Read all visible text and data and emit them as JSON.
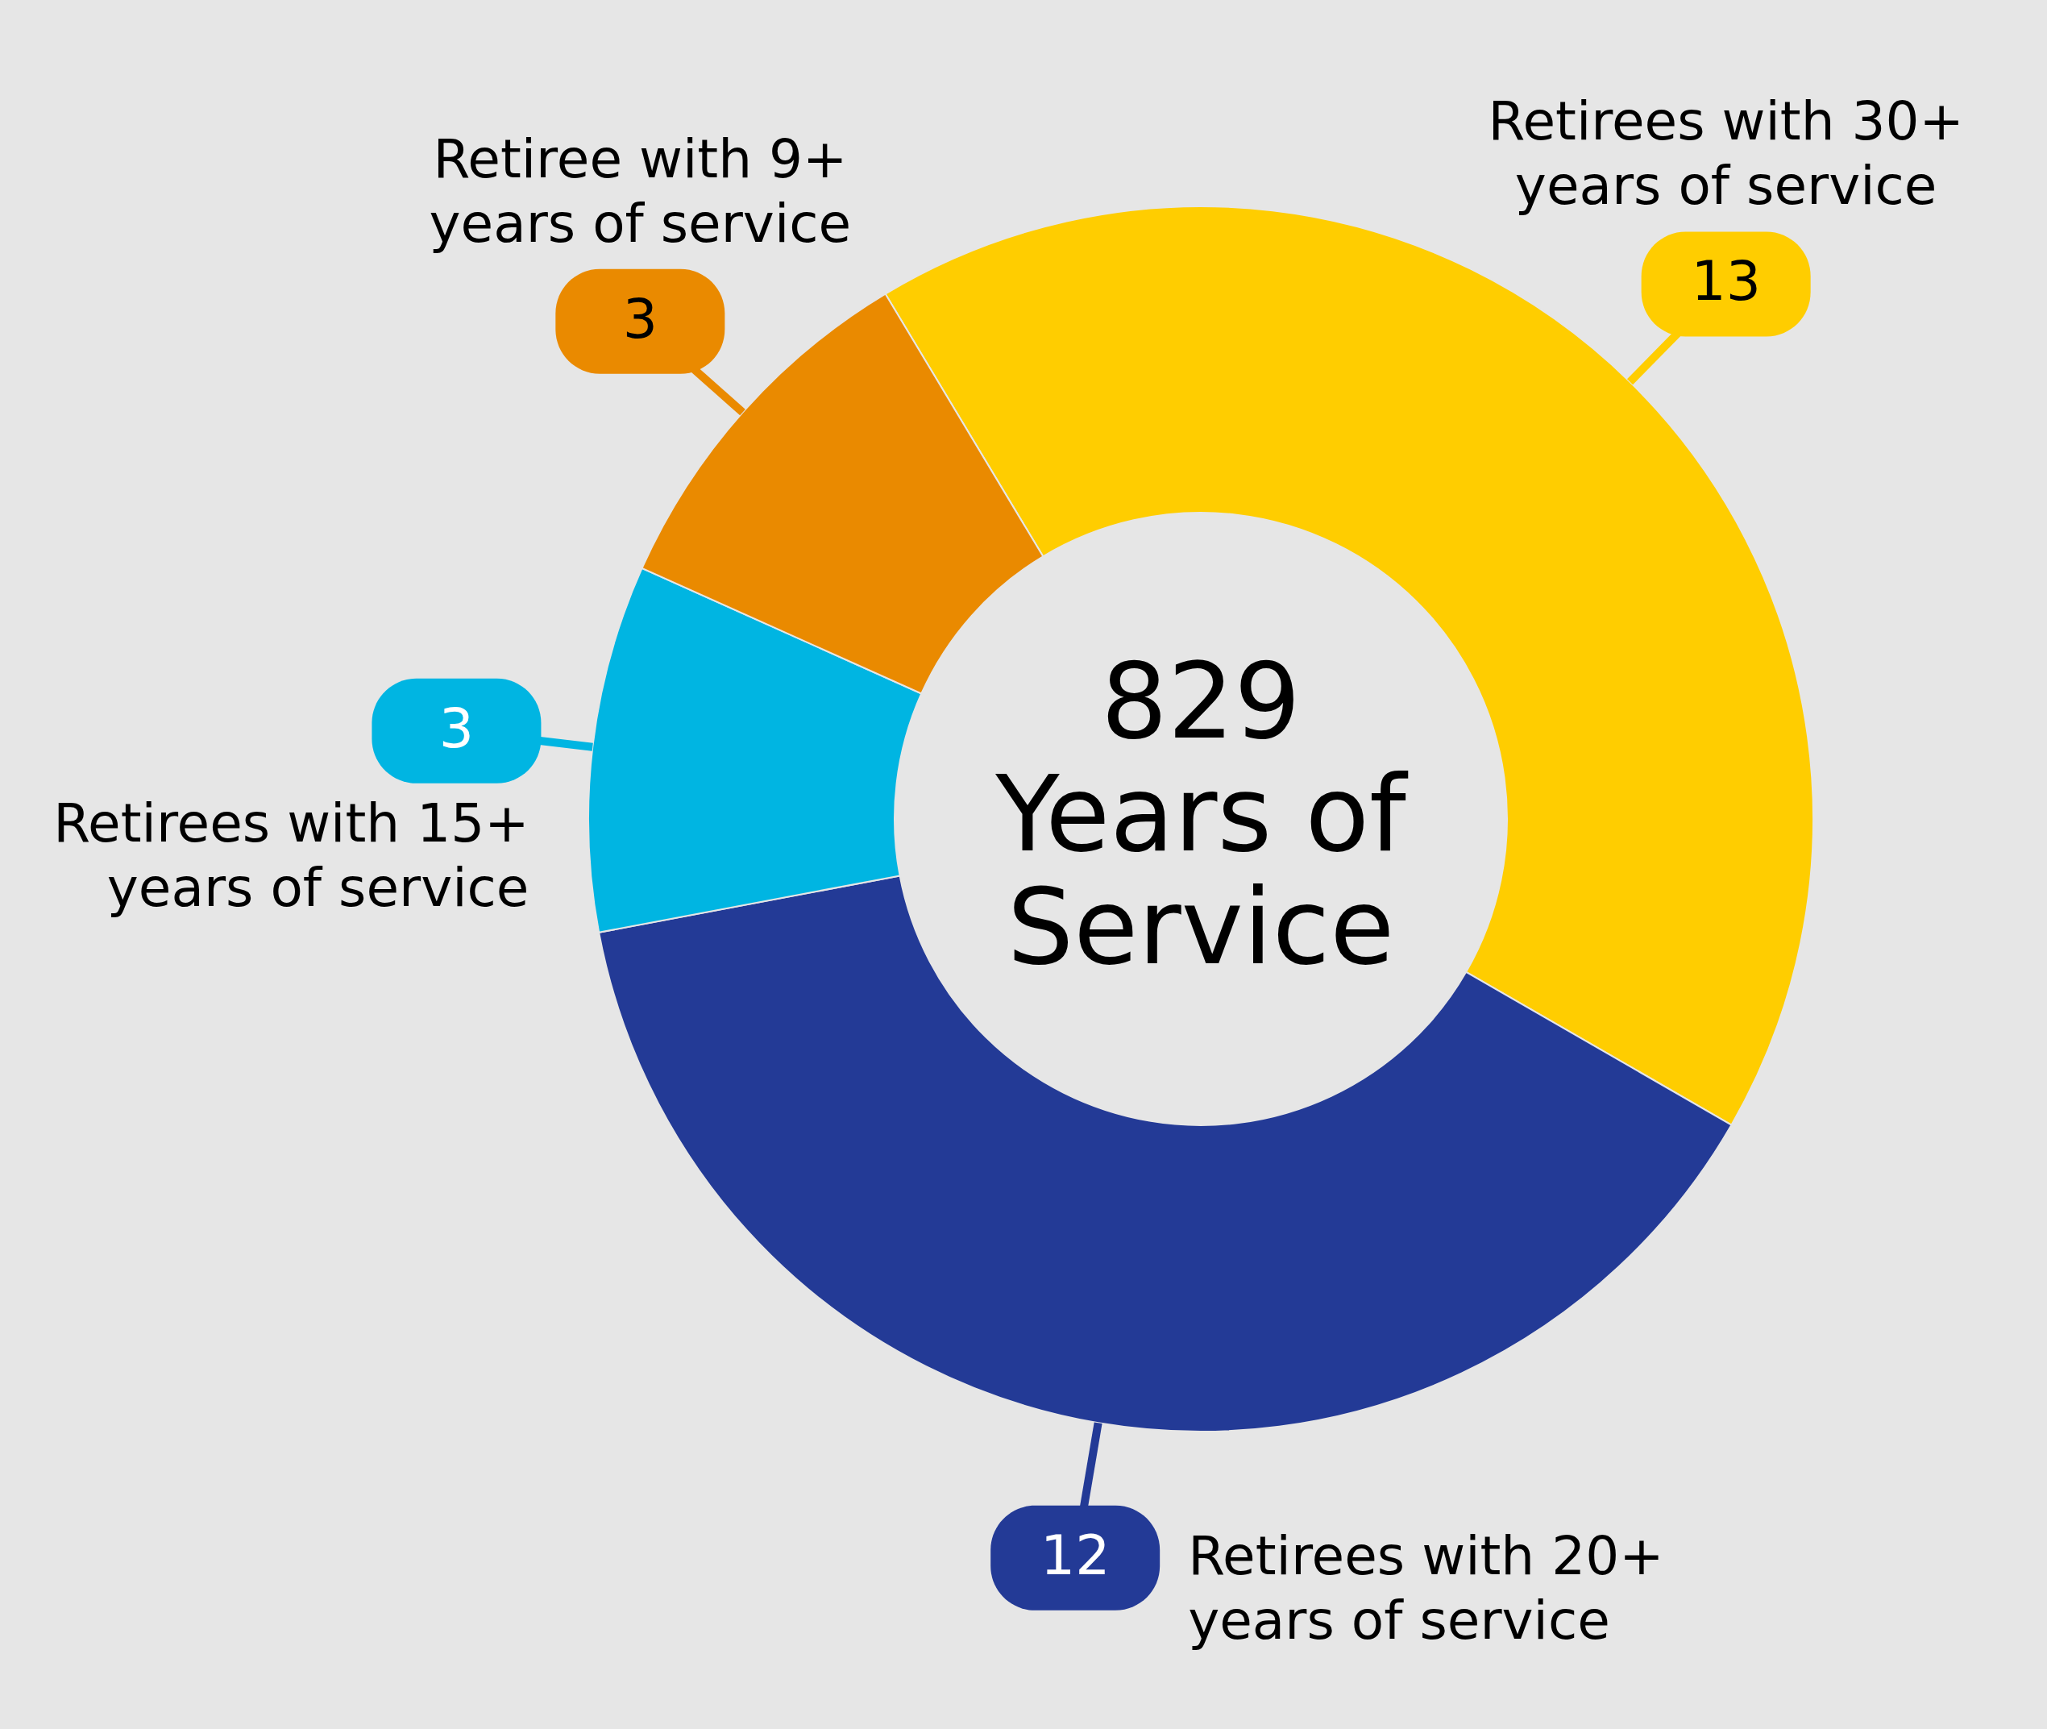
{
  "chart_data": {
    "type": "donut",
    "title": "829\nYears of\nService",
    "categories": [
      "Retirees with 30+\nyears of service",
      "Retirees with 20+\nyears of service",
      "Retirees with 15+\nyears of service",
      "Retiree with 9+\nyears of service"
    ],
    "values": [
      13,
      12,
      3,
      3
    ],
    "colors": [
      "#ffcd00",
      "#233a96",
      "#00b5e2",
      "#ea8a00"
    ],
    "data_labels": true
  }
}
